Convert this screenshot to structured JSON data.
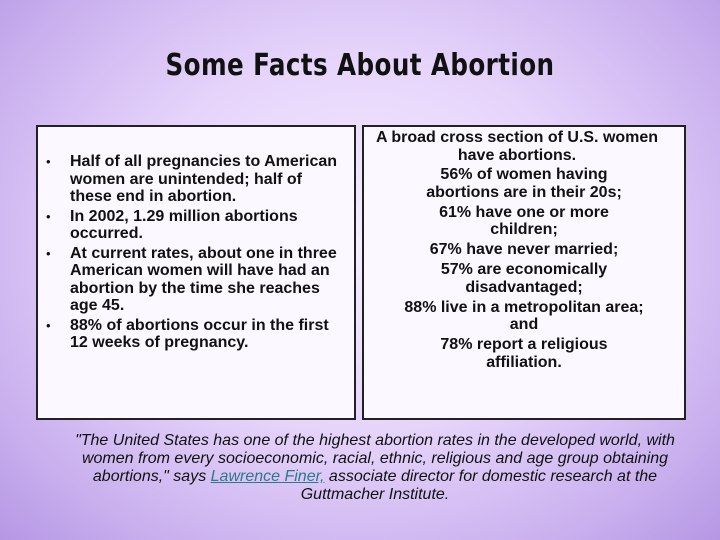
{
  "title": "Some Facts About Abortion",
  "left": {
    "bullets": [
      "Half of all pregnancies to American women are unintended; half of these end in abortion.",
      "In 2002, 1.29 million abortions occurred.",
      "At current rates, about one in three American women will have had an abortion by the time she reaches age 45.",
      "88% of abortions occur in the first 12 weeks of pregnancy."
    ]
  },
  "right": {
    "intro": "A broad cross section of U.S. women have abortions.",
    "items": [
      "56% of women having abortions are in their 20s;",
      "61% have one or more children;",
      "67% have never married;",
      "57% are economically disadvantaged;",
      "88% live in a metropolitan area; and",
      "78% report a religious affiliation."
    ]
  },
  "quote": {
    "before": "\"The United States has one of the highest abortion rates in the developed world, with women from every socioeconomic, racial, ethnic, religious and age group obtaining abortions,\" says ",
    "link": "Lawrence Finer,",
    "after": " associate director for domestic research at the Guttmacher Institute."
  }
}
